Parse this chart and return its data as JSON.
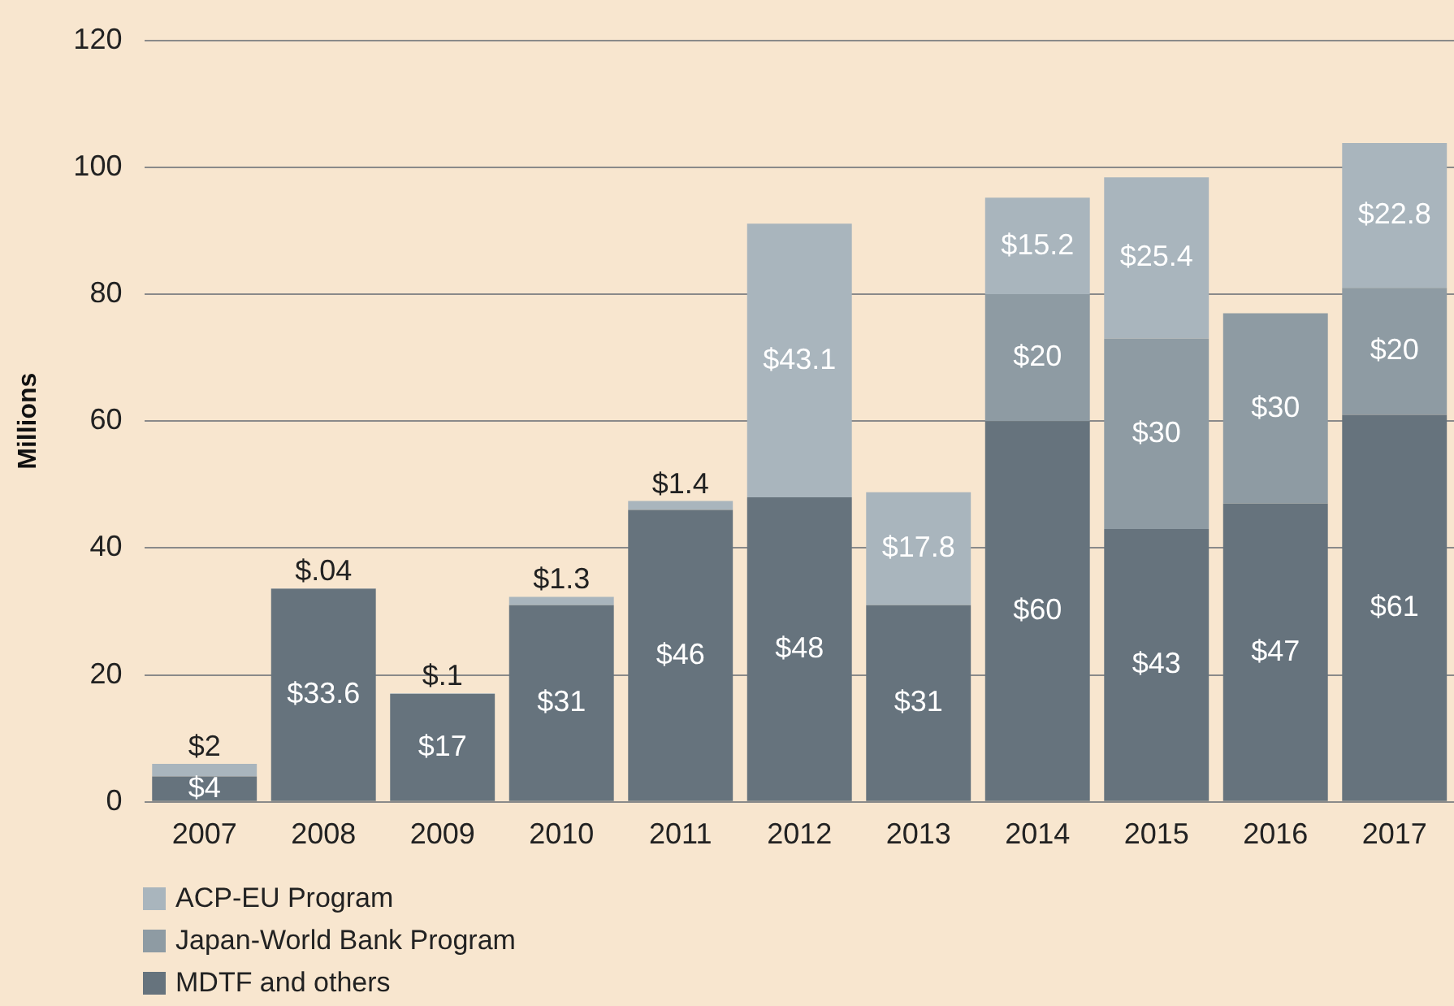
{
  "chart_data": {
    "type": "bar",
    "stacked": true,
    "ylabel": "Millions",
    "categories": [
      "2007",
      "2008",
      "2009",
      "2010",
      "2011",
      "2012",
      "2013",
      "2014",
      "2015",
      "2016",
      "2017"
    ],
    "series": [
      {
        "name": "MDTF and others",
        "color": "#66737d",
        "values": [
          4,
          33.6,
          17,
          31,
          46,
          48,
          31,
          60,
          43,
          47,
          61
        ],
        "value_labels": [
          "$4",
          "$33.6",
          "$17",
          "$31",
          "$46",
          "$48",
          "$31",
          "$60",
          "$43",
          "$47",
          "$61"
        ]
      },
      {
        "name": "Japan-World Bank Program",
        "color": "#8e9ba3",
        "values": [
          null,
          null,
          null,
          null,
          null,
          null,
          null,
          20,
          30,
          30,
          20
        ],
        "value_labels": [
          null,
          null,
          null,
          null,
          null,
          null,
          null,
          "$20",
          "$30",
          "$30",
          "$20"
        ]
      },
      {
        "name": "ACP-EU Program",
        "color": "#a9b5bd",
        "values": [
          2,
          0.04,
          0.1,
          1.3,
          1.4,
          43.1,
          17.8,
          15.2,
          25.4,
          null,
          22.8
        ],
        "value_labels": [
          "$2",
          "$.04",
          "$.1",
          "$1.3",
          "$1.4",
          "$43.1",
          "$17.8",
          "$15.2",
          "$25.4",
          null,
          "$22.8"
        ]
      }
    ],
    "ylim": [
      0,
      120
    ],
    "yticks": [
      0,
      20,
      40,
      60,
      80,
      100,
      120
    ],
    "grid": "y",
    "legend": "bottom left"
  }
}
